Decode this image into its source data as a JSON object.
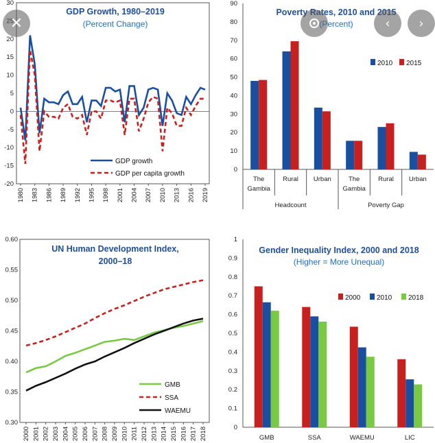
{
  "overlay": {
    "close_icon": "close-icon",
    "lens_icon": "lens-icon",
    "prev_icon": "chevron-left-icon",
    "next_icon": "chevron-right-icon"
  },
  "chart_data": [
    {
      "type": "line",
      "title": "GDP Growth, 1980–2019",
      "subtitle": "(Percent Change)",
      "ylim": [
        -20,
        30
      ],
      "yticks": [
        -20,
        -15,
        -10,
        -5,
        0,
        5,
        10,
        15,
        20,
        25,
        30
      ],
      "xticks": [
        "1980",
        "1983",
        "1986",
        "1989",
        "1992",
        "1995",
        "1998",
        "2001",
        "2004",
        "2007",
        "2010",
        "2013",
        "2016",
        "2019"
      ],
      "x": [
        1980,
        1981,
        1982,
        1983,
        1984,
        1985,
        1986,
        1987,
        1988,
        1989,
        1990,
        1991,
        1992,
        1993,
        1994,
        1995,
        1996,
        1997,
        1998,
        1999,
        2000,
        2001,
        2002,
        2003,
        2004,
        2005,
        2006,
        2007,
        2008,
        2009,
        2010,
        2011,
        2012,
        2013,
        2014,
        2015,
        2016,
        2017,
        2018,
        2019
      ],
      "series": [
        {
          "name": "GDP growth",
          "color": "#1a4fa0",
          "style": "solid",
          "values": [
            1,
            -8,
            21,
            13,
            -6,
            3.5,
            2.5,
            2.5,
            2,
            4.5,
            5.5,
            2,
            2,
            4,
            -3,
            3,
            3,
            1.5,
            6.5,
            6.5,
            5.5,
            6,
            -3,
            7,
            7,
            -1,
            1,
            6,
            6.5,
            6,
            -4,
            5,
            3,
            -0.5,
            -1,
            4,
            2,
            4.5,
            6.5,
            6
          ]
        },
        {
          "name": "GDP per capita growth",
          "color": "#c8201e",
          "style": "dashed",
          "values": [
            -1,
            -14.5,
            17,
            10,
            -11,
            0,
            -1.5,
            -1.5,
            -2,
            1,
            2,
            -1.5,
            -2,
            -1,
            -6.5,
            0,
            0,
            -2,
            3,
            3,
            2.5,
            3,
            -6.5,
            3.5,
            3.5,
            -5.5,
            -2,
            2.5,
            4,
            3.5,
            -11,
            1,
            -0.5,
            -4,
            -4,
            1,
            -1,
            1.5,
            3.5,
            3.5
          ]
        }
      ]
    },
    {
      "type": "bar",
      "title": "Poverty Rates, 2010 and 2015",
      "subtitle": "(Percent)",
      "ylim": [
        0,
        90
      ],
      "yticks": [
        0,
        10,
        20,
        30,
        40,
        50,
        60,
        70,
        80,
        90
      ],
      "categories": [
        "The Gambia",
        "Rural",
        "Urban",
        "The Gambia",
        "Rural",
        "Urban"
      ],
      "groups": [
        "Headcount",
        "Poverty Gap"
      ],
      "series": [
        {
          "name": "2010",
          "color": "#1a4fa0",
          "values": [
            48,
            64,
            33.5,
            15.5,
            23,
            9.5
          ]
        },
        {
          "name": "2015",
          "color": "#c8201e",
          "values": [
            48.5,
            69.5,
            31.5,
            15.5,
            25,
            8
          ]
        }
      ]
    },
    {
      "type": "line",
      "title": "UN Human Development Index,",
      "title2": "2000–18",
      "ylim": [
        0.3,
        0.6
      ],
      "yticks": [
        "0.30",
        "0.35",
        "0.40",
        "0.45",
        "0.50",
        "0.55",
        "0.60"
      ],
      "x": [
        "2000",
        "2001",
        "2002",
        "2003",
        "2004",
        "2005",
        "2006",
        "2007",
        "2008",
        "2009",
        "2010",
        "2011",
        "2012",
        "2013",
        "2014",
        "2015",
        "2016",
        "2017",
        "2018"
      ],
      "series": [
        {
          "name": "GMB",
          "color": "#7ac943",
          "style": "solid",
          "values": [
            0.382,
            0.389,
            0.392,
            0.4,
            0.409,
            0.414,
            0.42,
            0.426,
            0.432,
            0.434,
            0.437,
            0.435,
            0.441,
            0.447,
            0.451,
            0.455,
            0.458,
            0.462,
            0.466
          ]
        },
        {
          "name": "SSA",
          "color": "#c8201e",
          "style": "dashed",
          "values": [
            0.426,
            0.43,
            0.435,
            0.441,
            0.448,
            0.455,
            0.462,
            0.471,
            0.479,
            0.486,
            0.492,
            0.499,
            0.506,
            0.512,
            0.518,
            0.522,
            0.526,
            0.53,
            0.533
          ]
        },
        {
          "name": "WAEMU",
          "color": "#111111",
          "style": "solid",
          "values": [
            0.352,
            0.36,
            0.366,
            0.373,
            0.38,
            0.388,
            0.395,
            0.4,
            0.408,
            0.415,
            0.422,
            0.43,
            0.437,
            0.444,
            0.45,
            0.456,
            0.462,
            0.467,
            0.47
          ]
        }
      ]
    },
    {
      "type": "bar",
      "title": "Gender Inequality Index, 2000  and 2018",
      "subtitle": "(Higher = More Unequal)",
      "ylim": [
        0,
        1
      ],
      "yticks": [
        "0",
        "0.1",
        "0.2",
        "0.3",
        "0.4",
        "0.5",
        "0.6",
        "0.7",
        "0.8",
        "0.9",
        "1"
      ],
      "categories": [
        "GMB",
        "SSA",
        "WAEMU",
        "LIC"
      ],
      "series": [
        {
          "name": "2000",
          "color": "#c8201e",
          "values": [
            0.75,
            0.64,
            0.535,
            0.362
          ]
        },
        {
          "name": "2010",
          "color": "#1a4fa0",
          "values": [
            0.665,
            0.59,
            0.425,
            0.255
          ]
        },
        {
          "name": "2018",
          "color": "#7ac943",
          "values": [
            0.62,
            0.562,
            0.375,
            0.228
          ]
        }
      ]
    }
  ]
}
